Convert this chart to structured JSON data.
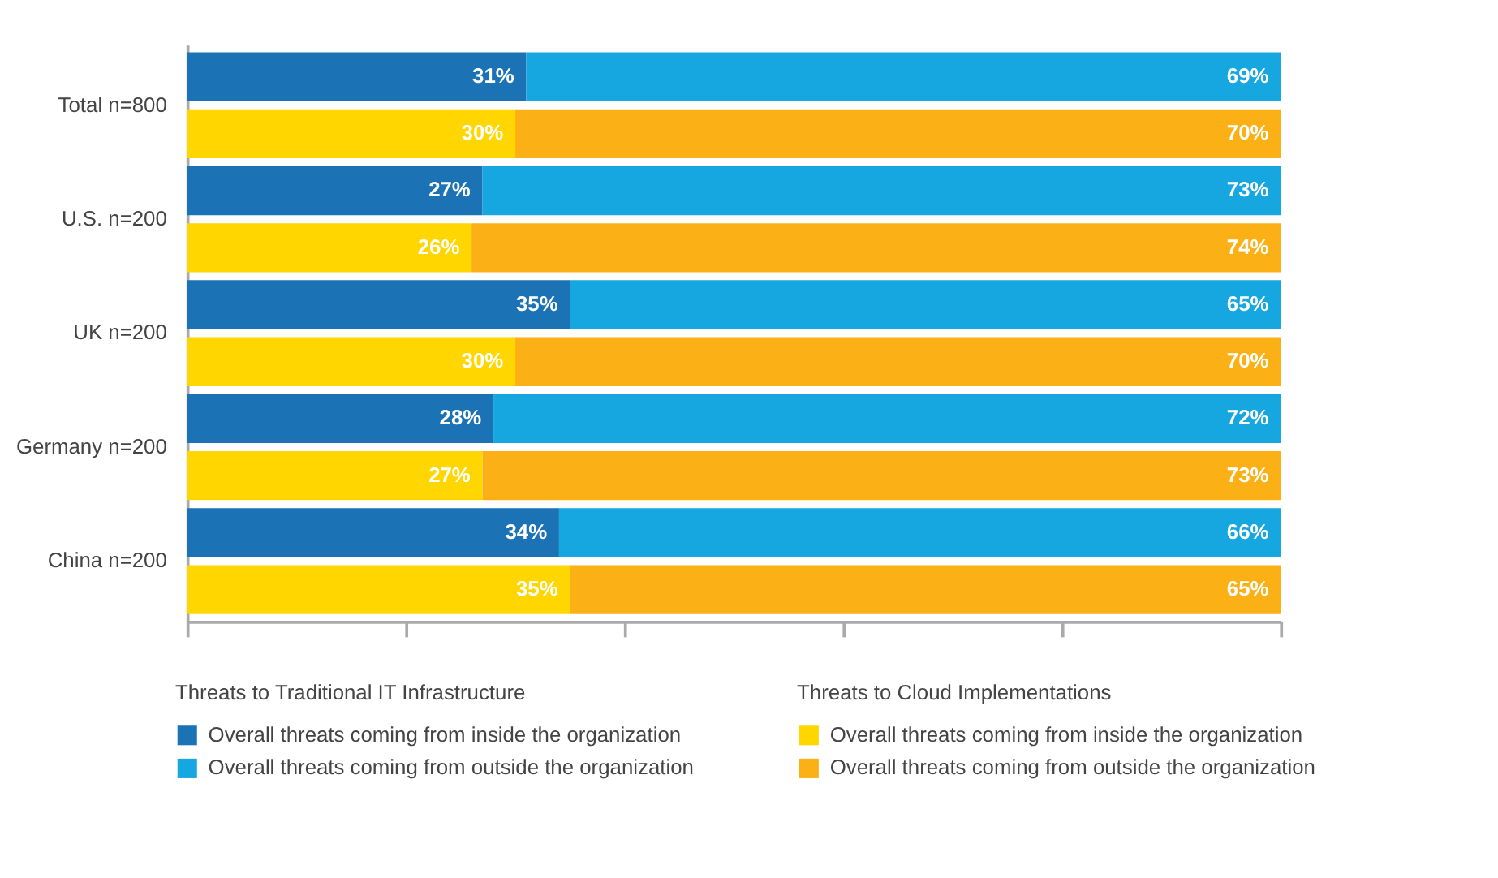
{
  "chart_data": {
    "type": "bar",
    "orientation": "horizontal",
    "stacked": true,
    "categories": [
      "Total n=800",
      null,
      "U.S. n=200",
      null,
      "UK n=200",
      null,
      "Germany n=200",
      null,
      "China n=200",
      null
    ],
    "series": [
      {
        "name": "Overall threats coming from inside the organization",
        "color": "#1b72b5",
        "values": [
          31,
          null,
          27,
          null,
          35,
          null,
          28,
          null,
          34,
          null
        ],
        "value_labels": [
          "31%",
          null,
          "27%",
          null,
          "35%",
          null,
          "28%",
          null,
          "34%",
          null
        ]
      },
      {
        "name": "Overall threats coming from outside the organization",
        "color": "#16a6e0",
        "values": [
          69,
          null,
          73,
          null,
          65,
          null,
          72,
          null,
          66,
          null
        ],
        "value_labels": [
          "69%",
          null,
          "73%",
          null,
          "65%",
          null,
          "72%",
          null,
          "66%",
          null
        ]
      },
      {
        "name": "Overall threats coming from inside the organization",
        "color": "#ffd600",
        "values": [
          null,
          30,
          null,
          26,
          null,
          30,
          null,
          27,
          null,
          35
        ],
        "value_labels": [
          null,
          "30%",
          null,
          "26%",
          null,
          "30%",
          null,
          "27%",
          null,
          "35%"
        ]
      },
      {
        "name": "Overall threats coming from outside the organization",
        "color": "#fbb116",
        "values": [
          null,
          70,
          null,
          74,
          null,
          70,
          null,
          73,
          null,
          65
        ],
        "value_labels": [
          null,
          "70%",
          null,
          "74%",
          null,
          "70%",
          null,
          "73%",
          null,
          "65%"
        ]
      }
    ],
    "xlim": [
      0,
      100
    ],
    "xticks": [
      {
        "value": 0,
        "label": null
      },
      {
        "value": 20,
        "label": null
      },
      {
        "value": 40,
        "label": null
      },
      {
        "value": 60,
        "label": null
      },
      {
        "value": 80,
        "label": null
      },
      {
        "value": 100,
        "label": null
      }
    ],
    "tick_labels": "y",
    "grid": false,
    "legend": "bottom",
    "annotations": [
      "Threats to Traditional IT Infrastructure",
      "Threats to Cloud Implementations"
    ]
  }
}
